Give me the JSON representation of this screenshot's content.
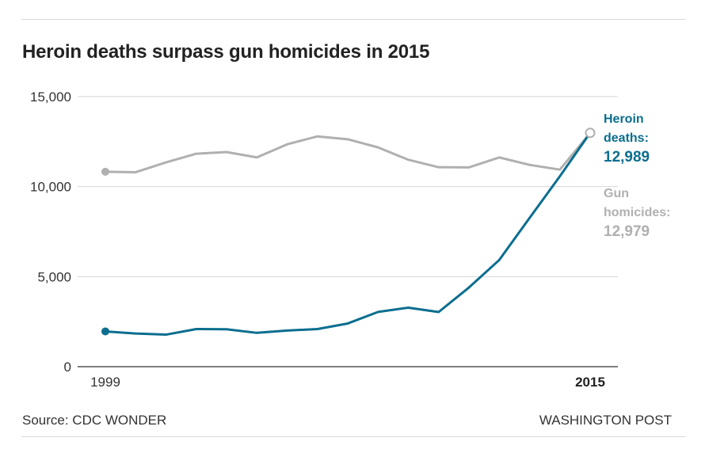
{
  "title": "Heroin deaths surpass gun homicides in 2015",
  "footer": {
    "source": "Source: CDC WONDER",
    "credit": "WASHINGTON POST"
  },
  "colors": {
    "heroin": "#0b6e8f",
    "gun": "#b0b0b0",
    "grid": "#d6d6d6",
    "axis": "#555555"
  },
  "chart_data": {
    "type": "line",
    "title": "Heroin deaths surpass gun homicides in 2015",
    "xlabel": "",
    "ylabel": "",
    "xlim": [
      1999,
      2015
    ],
    "ylim": [
      0,
      15000
    ],
    "grid": true,
    "x": [
      1999,
      2000,
      2001,
      2002,
      2003,
      2004,
      2005,
      2006,
      2007,
      2008,
      2009,
      2010,
      2011,
      2012,
      2013,
      2014,
      2015
    ],
    "x_tick_labels": [
      {
        "value": 1999,
        "label": "1999"
      },
      {
        "value": 2015,
        "label": "2015"
      }
    ],
    "y_ticks": [
      {
        "value": 0,
        "label": "0"
      },
      {
        "value": 5000,
        "label": "5,000"
      },
      {
        "value": 10000,
        "label": "10,000"
      },
      {
        "value": 15000,
        "label": "15,000"
      }
    ],
    "series": [
      {
        "name": "Gun homicides",
        "key": "gun",
        "values": [
          10828,
          10801,
          11348,
          11829,
          11920,
          11624,
          12352,
          12791,
          12632,
          12179,
          11493,
          11078,
          11068,
          11622,
          11208,
          10945,
          12979
        ],
        "label_lines": [
          "Gun",
          "homicides:"
        ],
        "label_value": "12,979"
      },
      {
        "name": "Heroin deaths",
        "key": "heroin",
        "values": [
          1960,
          1842,
          1779,
          2089,
          2080,
          1878,
          2009,
          2088,
          2399,
          3041,
          3278,
          3036,
          4397,
          5925,
          8257,
          10574,
          12989
        ],
        "label_lines": [
          "Heroin",
          "deaths:"
        ],
        "label_value": "12,989"
      }
    ]
  }
}
